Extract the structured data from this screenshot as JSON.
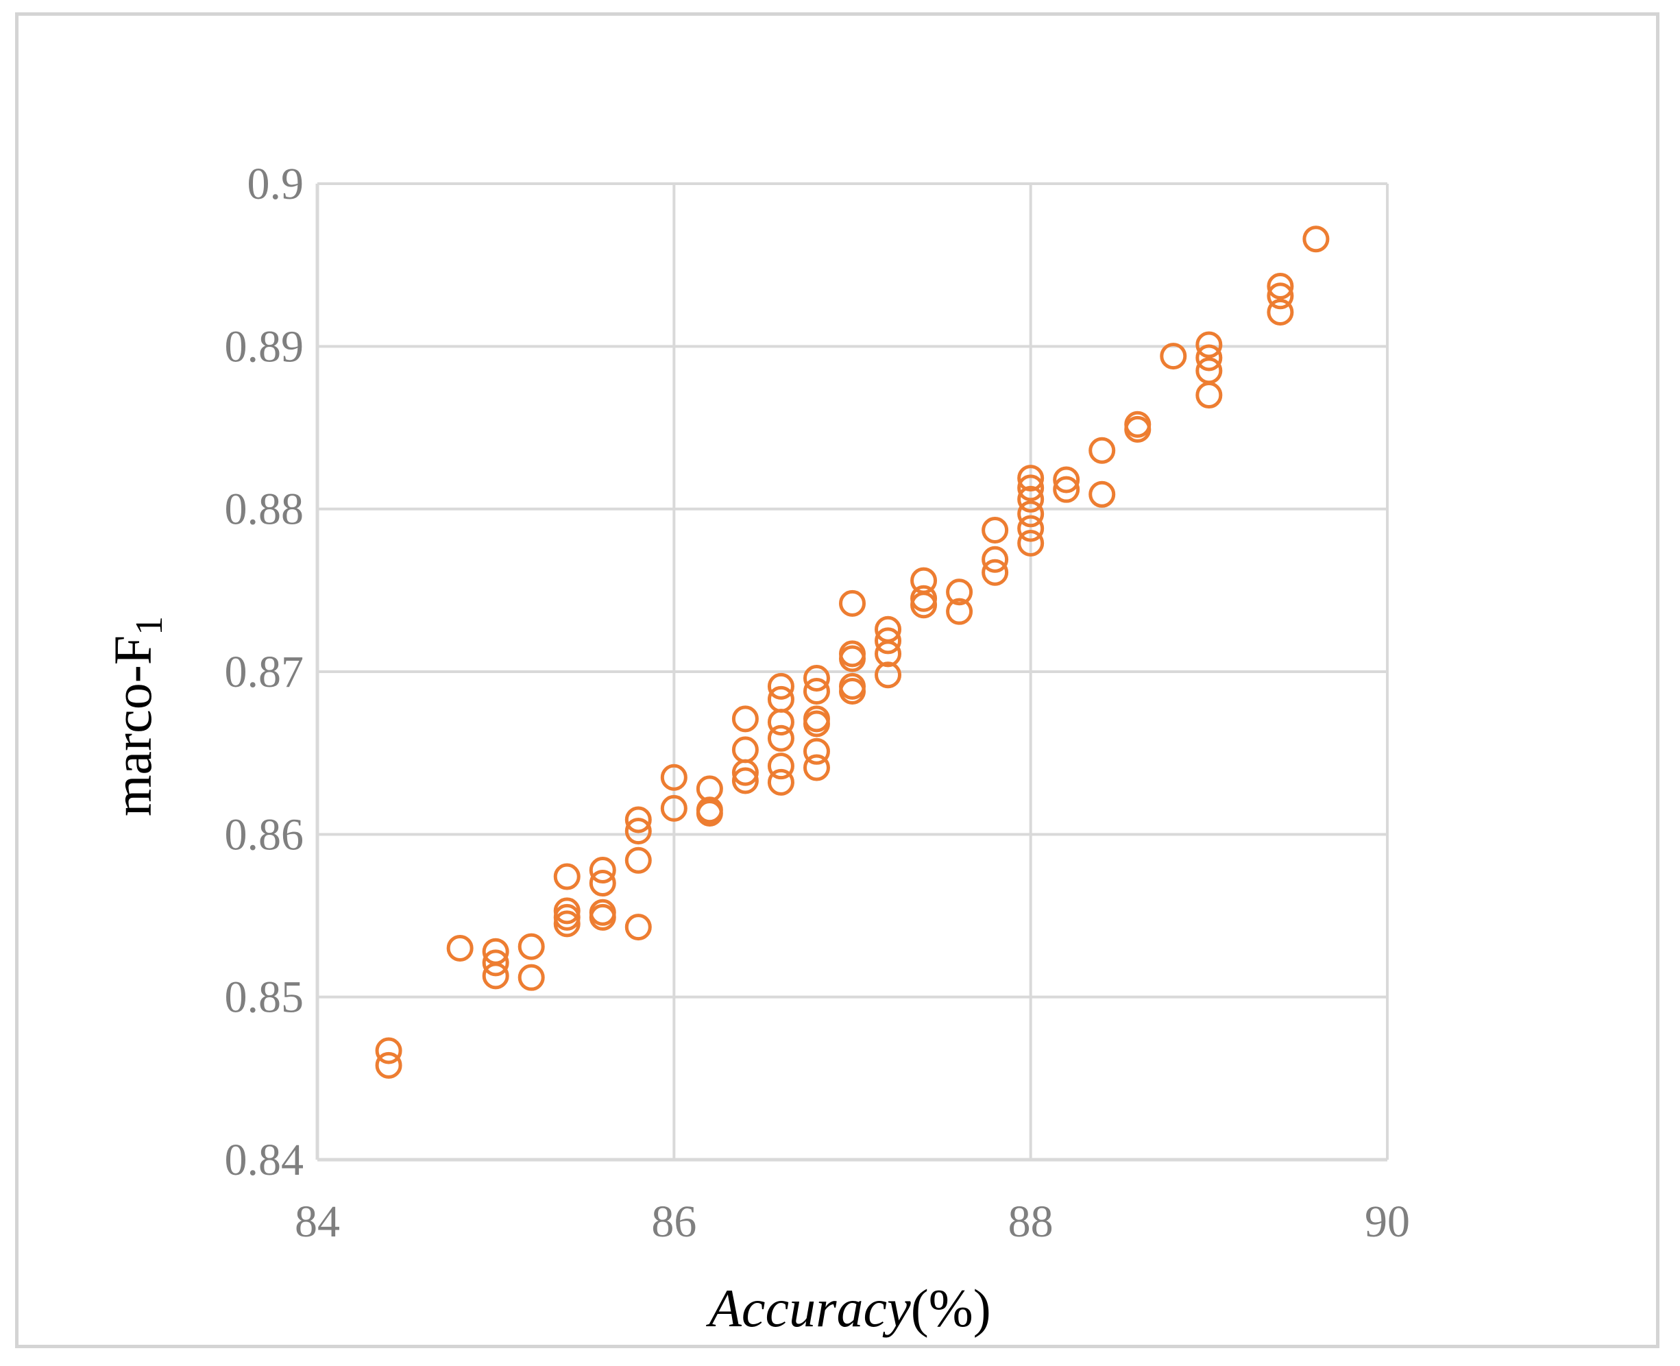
{
  "chart_data": {
    "type": "scatter",
    "xlabel": "Accuracy",
    "xlabel_suffix": "(%)",
    "ylabel": "marco-F",
    "ylabel_subscript": "1",
    "xlim": [
      84,
      90
    ],
    "ylim": [
      0.84,
      0.9
    ],
    "x_ticks": [
      84,
      86,
      88,
      90
    ],
    "y_ticks": [
      0.84,
      0.85,
      0.86,
      0.87,
      0.88,
      0.89,
      0.9
    ],
    "x_tick_labels": [
      "84",
      "86",
      "88",
      "90"
    ],
    "y_tick_labels": [
      "0.84",
      "0.85",
      "0.86",
      "0.87",
      "0.88",
      "0.89",
      "0.9"
    ],
    "grid": true,
    "marker": "hollow-circle",
    "color": "#ED7D31",
    "points": [
      [
        84.4,
        0.8467
      ],
      [
        84.4,
        0.8458
      ],
      [
        84.8,
        0.853
      ],
      [
        85.0,
        0.8528
      ],
      [
        85.0,
        0.8521
      ],
      [
        85.0,
        0.8513
      ],
      [
        85.2,
        0.8531
      ],
      [
        85.2,
        0.8512
      ],
      [
        85.4,
        0.8574
      ],
      [
        85.4,
        0.8553
      ],
      [
        85.4,
        0.8549
      ],
      [
        85.4,
        0.8545
      ],
      [
        85.6,
        0.8578
      ],
      [
        85.6,
        0.857
      ],
      [
        85.6,
        0.8552
      ],
      [
        85.6,
        0.8549
      ],
      [
        85.8,
        0.8609
      ],
      [
        85.8,
        0.8602
      ],
      [
        85.8,
        0.8584
      ],
      [
        85.8,
        0.8543
      ],
      [
        86.0,
        0.8635
      ],
      [
        86.0,
        0.8616
      ],
      [
        86.2,
        0.8628
      ],
      [
        86.2,
        0.8615
      ],
      [
        86.2,
        0.8613
      ],
      [
        86.4,
        0.8671
      ],
      [
        86.4,
        0.8652
      ],
      [
        86.4,
        0.8638
      ],
      [
        86.4,
        0.8633
      ],
      [
        86.6,
        0.8691
      ],
      [
        86.6,
        0.8683
      ],
      [
        86.6,
        0.8669
      ],
      [
        86.6,
        0.8659
      ],
      [
        86.6,
        0.8642
      ],
      [
        86.6,
        0.8632
      ],
      [
        86.8,
        0.8696
      ],
      [
        86.8,
        0.8688
      ],
      [
        86.8,
        0.8671
      ],
      [
        86.8,
        0.8668
      ],
      [
        86.8,
        0.8651
      ],
      [
        86.8,
        0.8641
      ],
      [
        87.0,
        0.8742
      ],
      [
        87.0,
        0.8711
      ],
      [
        87.0,
        0.8708
      ],
      [
        87.0,
        0.8691
      ],
      [
        87.0,
        0.8688
      ],
      [
        87.2,
        0.8726
      ],
      [
        87.2,
        0.8719
      ],
      [
        87.2,
        0.8711
      ],
      [
        87.2,
        0.8698
      ],
      [
        87.4,
        0.8756
      ],
      [
        87.4,
        0.8745
      ],
      [
        87.4,
        0.8741
      ],
      [
        87.6,
        0.8749
      ],
      [
        87.6,
        0.8737
      ],
      [
        87.8,
        0.8787
      ],
      [
        87.8,
        0.8769
      ],
      [
        87.8,
        0.8761
      ],
      [
        88.0,
        0.8819
      ],
      [
        88.0,
        0.8813
      ],
      [
        88.0,
        0.8806
      ],
      [
        88.0,
        0.8797
      ],
      [
        88.0,
        0.8788
      ],
      [
        88.0,
        0.8779
      ],
      [
        88.2,
        0.8818
      ],
      [
        88.2,
        0.8812
      ],
      [
        88.4,
        0.8836
      ],
      [
        88.4,
        0.8809
      ],
      [
        88.6,
        0.8852
      ],
      [
        88.6,
        0.8849
      ],
      [
        88.8,
        0.8894
      ],
      [
        89.0,
        0.8901
      ],
      [
        89.0,
        0.8893
      ],
      [
        89.0,
        0.8885
      ],
      [
        89.0,
        0.887
      ],
      [
        89.4,
        0.8937
      ],
      [
        89.4,
        0.8931
      ],
      [
        89.4,
        0.8921
      ],
      [
        89.6,
        0.8966
      ]
    ]
  }
}
